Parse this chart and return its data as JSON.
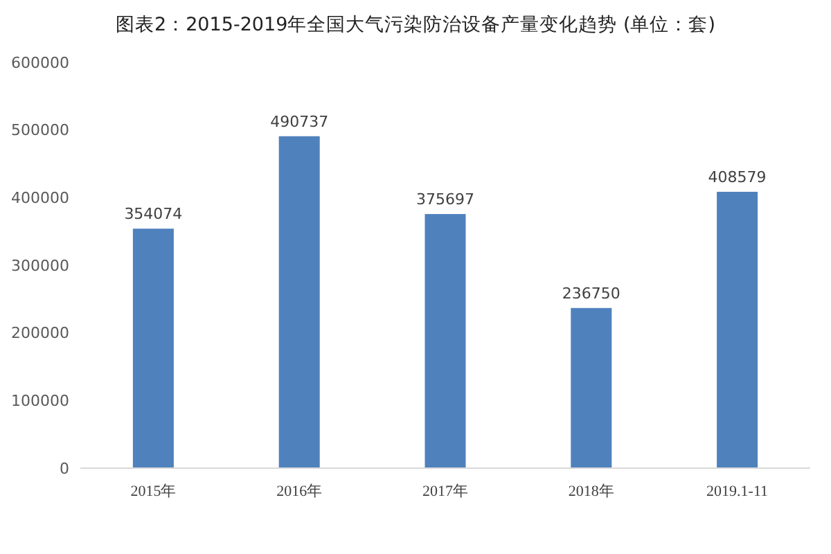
{
  "chart_data": {
    "type": "bar",
    "title": "图表2：2015-2019年全国大气污染防治设备产量变化趋势 (单位：套)",
    "categories": [
      "2015年",
      "2016年",
      "2017年",
      "2018年",
      "2019.1-11"
    ],
    "values": [
      354074,
      490737,
      375697,
      236750,
      408579
    ],
    "color": "#4f81bd",
    "ylim": [
      0,
      600000
    ],
    "yticks": [
      0,
      100000,
      200000,
      300000,
      400000,
      500000,
      600000
    ],
    "data_labels": true,
    "grid": false
  }
}
